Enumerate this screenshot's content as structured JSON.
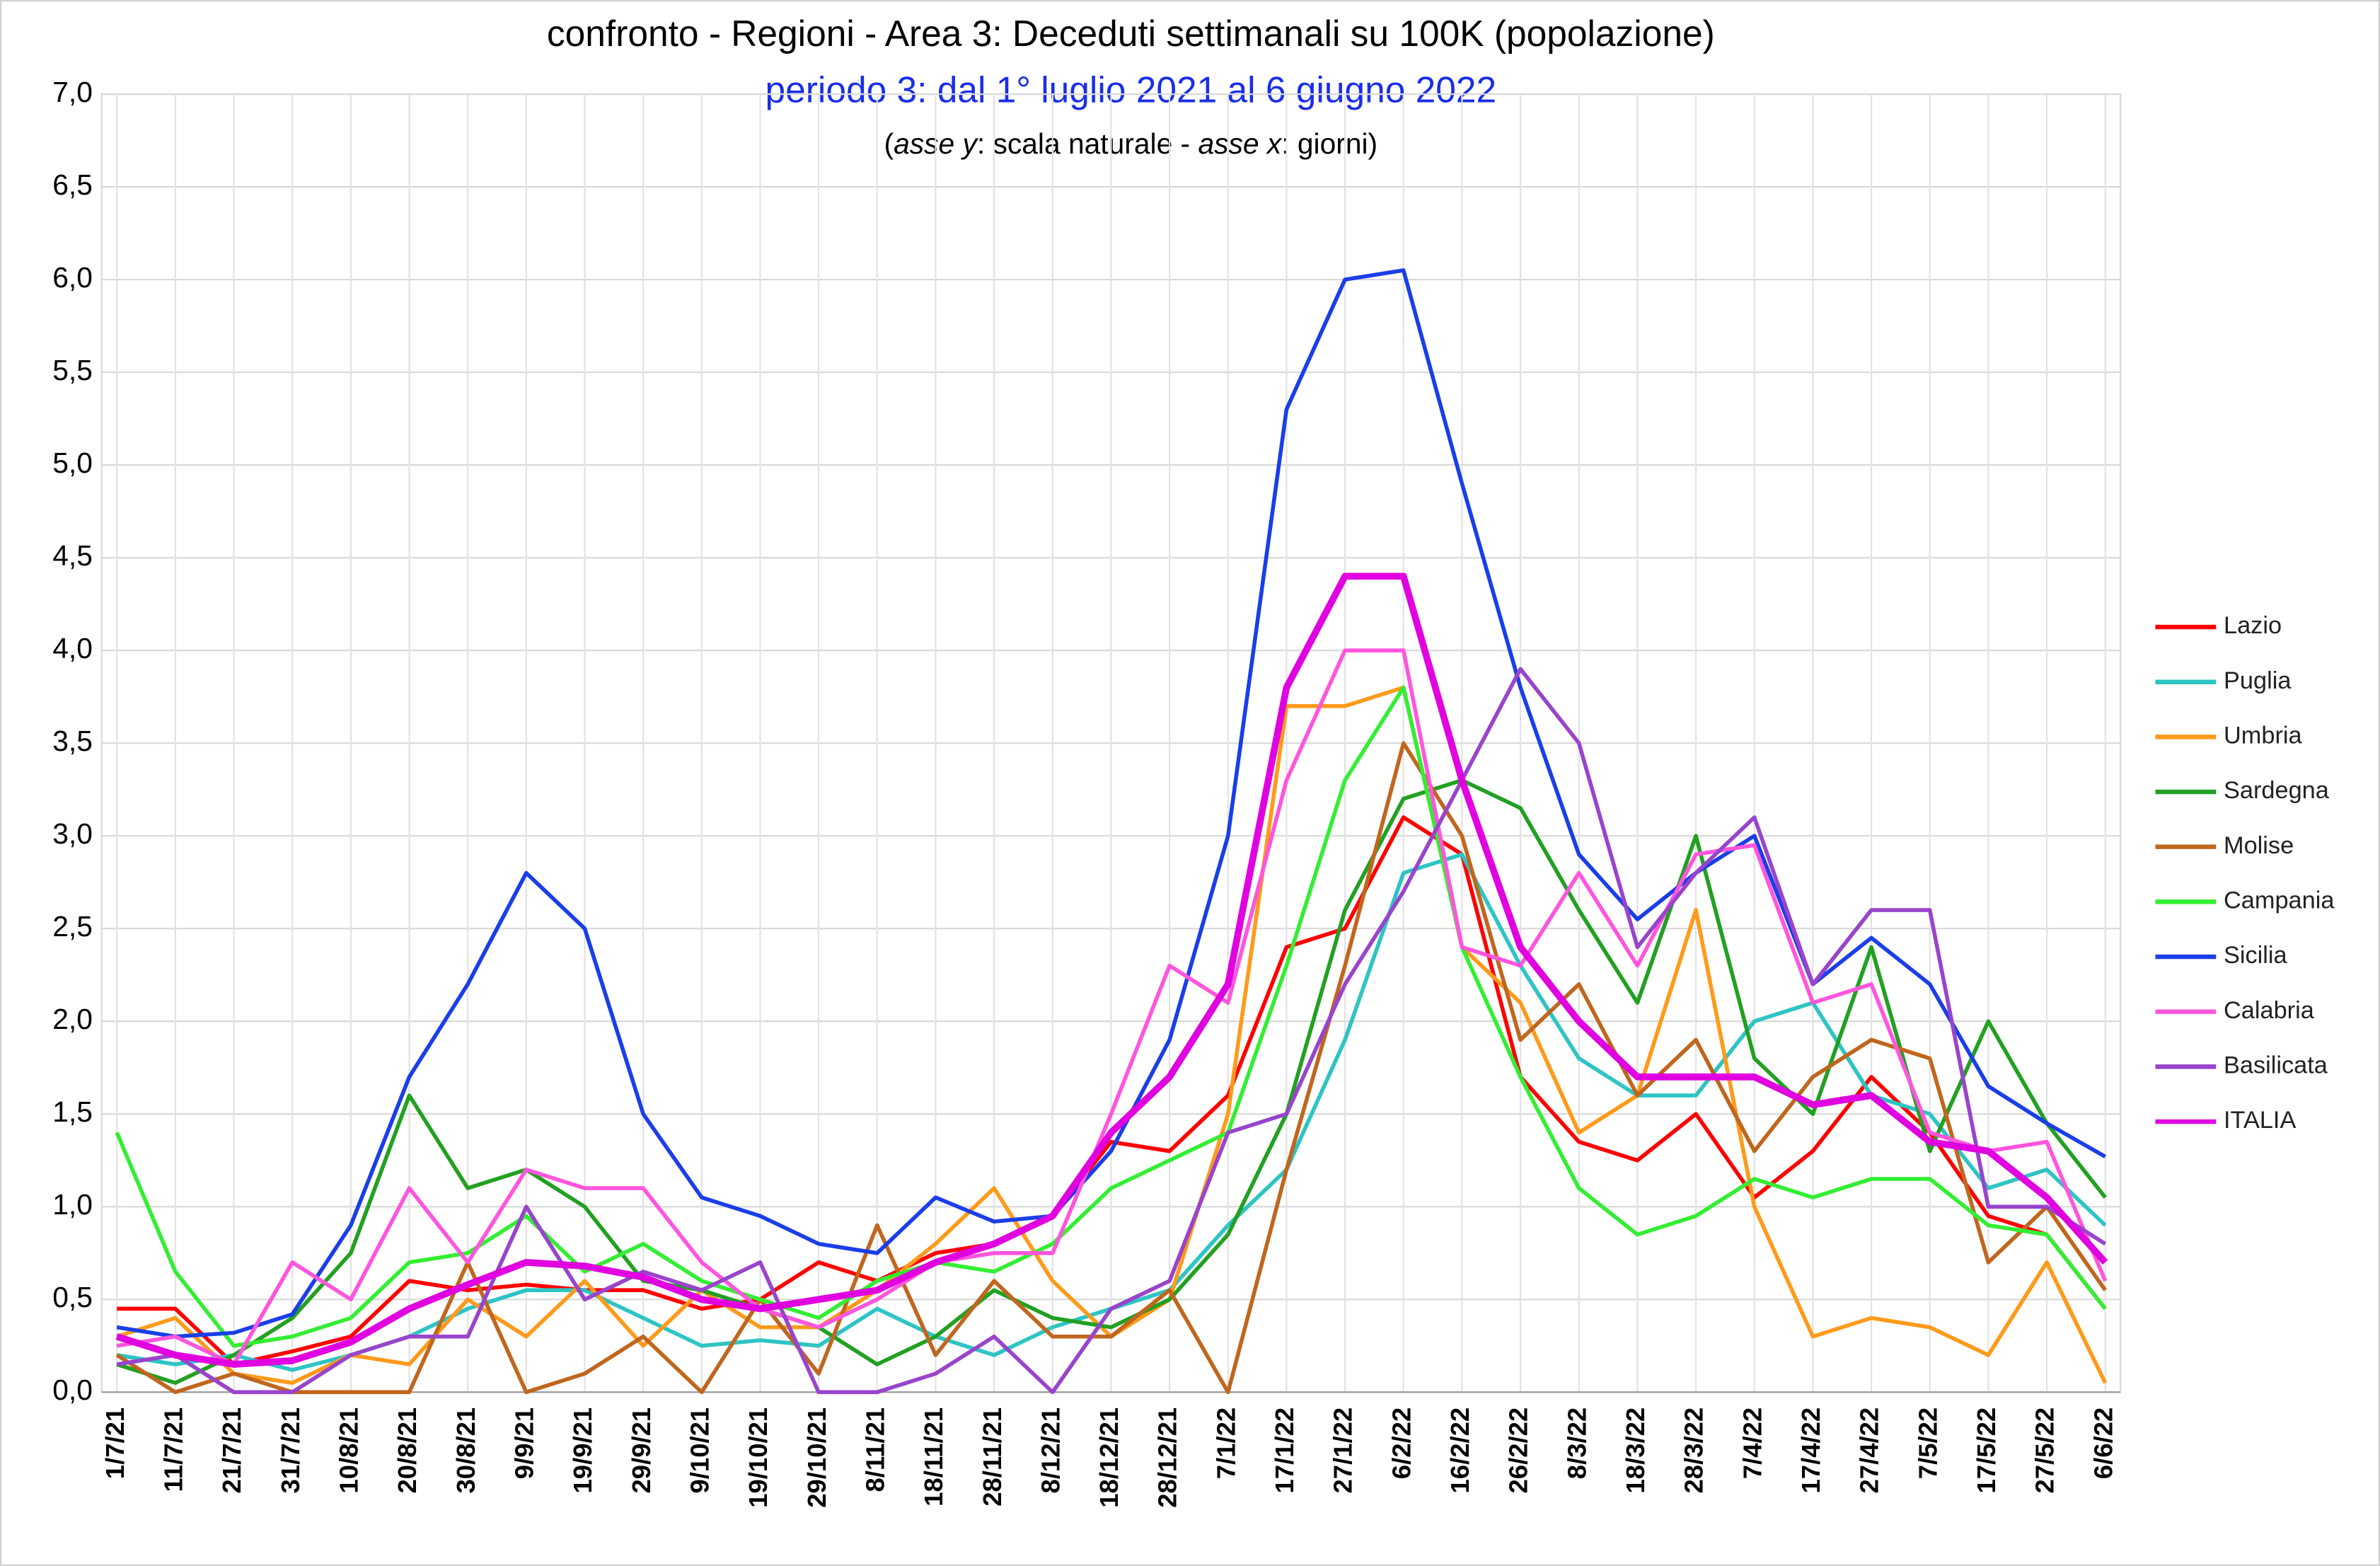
{
  "chart_data": {
    "type": "line",
    "title": "confronto - Regioni - Area 3: Deceduti settimanali su 100K (popolazione)",
    "subtitle": "periodo 3: dal 1° luglio 2021 al 6 giugno 2022",
    "note": [
      "(",
      "asse y",
      ": scala naturale - ",
      "asse x",
      ":  giorni)"
    ],
    "categories": [
      "1/7/21",
      "11/7/21",
      "21/7/21",
      "31/7/21",
      "10/8/21",
      "20/8/21",
      "30/8/21",
      "9/9/21",
      "19/9/21",
      "29/9/21",
      "9/10/21",
      "19/10/21",
      "29/10/21",
      "8/11/21",
      "18/11/21",
      "28/11/21",
      "8/12/21",
      "18/12/21",
      "28/12/21",
      "7/1/22",
      "17/1/22",
      "27/1/22",
      "6/2/22",
      "16/2/22",
      "26/2/22",
      "8/3/22",
      "18/3/22",
      "28/3/22",
      "7/4/22",
      "17/4/22",
      "27/4/22",
      "7/5/22",
      "17/5/22",
      "27/5/22",
      "6/6/22"
    ],
    "ylim": [
      0,
      7
    ],
    "yticks": [
      {
        "value": 0,
        "label": "0,0"
      },
      {
        "value": 0.5,
        "label": "0,5"
      },
      {
        "value": 1,
        "label": "1,0"
      },
      {
        "value": 1.5,
        "label": "1,5"
      },
      {
        "value": 2,
        "label": "2,0"
      },
      {
        "value": 2.5,
        "label": "2,5"
      },
      {
        "value": 3,
        "label": "3,0"
      },
      {
        "value": 3.5,
        "label": "3,5"
      },
      {
        "value": 4,
        "label": "4,0"
      },
      {
        "value": 4.5,
        "label": "4,5"
      },
      {
        "value": 5,
        "label": "5,0"
      },
      {
        "value": 5.5,
        "label": "5,5"
      },
      {
        "value": 6,
        "label": "6,0"
      },
      {
        "value": 6.5,
        "label": "6,5"
      },
      {
        "value": 7,
        "label": "7,0"
      }
    ],
    "grid": true,
    "legend": "right",
    "series": [
      {
        "name": "Lazio",
        "color": "#ff0000",
        "values": [
          0.45,
          0.45,
          0.15,
          0.22,
          0.3,
          0.6,
          0.55,
          0.58,
          0.55,
          0.55,
          0.45,
          0.5,
          0.7,
          0.6,
          0.75,
          0.8,
          0.95,
          1.35,
          1.3,
          1.6,
          2.4,
          2.5,
          3.1,
          2.9,
          1.7,
          1.35,
          1.25,
          1.5,
          1.05,
          1.3,
          1.7,
          1.4,
          0.95,
          0.85,
          0.45
        ]
      },
      {
        "name": "Puglia",
        "color": "#2ec4c4",
        "values": [
          0.2,
          0.15,
          0.2,
          0.12,
          0.2,
          0.3,
          0.45,
          0.55,
          0.55,
          0.4,
          0.25,
          0.28,
          0.25,
          0.45,
          0.3,
          0.2,
          0.35,
          0.45,
          0.55,
          0.9,
          1.2,
          1.9,
          2.8,
          2.9,
          2.3,
          1.8,
          1.6,
          1.6,
          2.0,
          2.1,
          1.6,
          1.5,
          1.1,
          1.2,
          0.9
        ]
      },
      {
        "name": "Umbria",
        "color": "#ff9a1a",
        "values": [
          0.3,
          0.4,
          0.1,
          0.05,
          0.2,
          0.15,
          0.5,
          0.3,
          0.6,
          0.25,
          0.55,
          0.35,
          0.35,
          0.55,
          0.8,
          1.1,
          0.6,
          0.3,
          0.5,
          1.5,
          3.7,
          3.7,
          3.8,
          2.4,
          2.1,
          1.4,
          1.6,
          2.6,
          1.0,
          0.3,
          0.4,
          0.35,
          0.2,
          0.7,
          0.05
        ]
      },
      {
        "name": "Sardegna",
        "color": "#22a022",
        "values": [
          0.15,
          0.05,
          0.2,
          0.4,
          0.75,
          1.6,
          1.1,
          1.2,
          1.0,
          0.6,
          0.55,
          0.45,
          0.35,
          0.15,
          0.3,
          0.55,
          0.4,
          0.35,
          0.5,
          0.85,
          1.5,
          2.6,
          3.2,
          3.3,
          3.15,
          2.6,
          2.1,
          3.0,
          1.8,
          1.5,
          2.4,
          1.3,
          2.0,
          1.45,
          1.05
        ]
      },
      {
        "name": "Molise",
        "color": "#c0661e",
        "values": [
          0.2,
          0.0,
          0.1,
          0.0,
          0.0,
          0.0,
          0.7,
          0.0,
          0.1,
          0.3,
          0.0,
          0.5,
          0.1,
          0.9,
          0.2,
          0.6,
          0.3,
          0.3,
          0.55,
          0.0,
          1.2,
          2.3,
          3.5,
          3.0,
          1.9,
          2.2,
          1.6,
          1.9,
          1.3,
          1.7,
          1.9,
          1.8,
          0.7,
          1.0,
          0.55
        ]
      },
      {
        "name": "Campania",
        "color": "#33ee33",
        "values": [
          1.4,
          0.65,
          0.25,
          0.3,
          0.4,
          0.7,
          0.75,
          0.95,
          0.65,
          0.8,
          0.6,
          0.5,
          0.4,
          0.6,
          0.7,
          0.65,
          0.8,
          1.1,
          1.25,
          1.4,
          2.3,
          3.3,
          3.8,
          2.4,
          1.7,
          1.1,
          0.85,
          0.95,
          1.15,
          1.05,
          1.15,
          1.15,
          0.9,
          0.85,
          0.45
        ]
      },
      {
        "name": "Sicilia",
        "color": "#1a3ee8",
        "values": [
          0.35,
          0.3,
          0.32,
          0.42,
          0.9,
          1.7,
          2.2,
          2.8,
          2.5,
          1.5,
          1.05,
          0.95,
          0.8,
          0.75,
          1.05,
          0.92,
          0.95,
          1.3,
          1.9,
          3.0,
          5.3,
          6.0,
          6.05,
          4.9,
          3.8,
          2.9,
          2.55,
          2.8,
          3.0,
          2.2,
          2.45,
          2.2,
          1.65,
          1.45,
          1.27
        ]
      },
      {
        "name": "Calabria",
        "color": "#ff55dd",
        "values": [
          0.25,
          0.3,
          0.15,
          0.7,
          0.5,
          1.1,
          0.7,
          1.2,
          1.1,
          1.1,
          0.7,
          0.45,
          0.35,
          0.5,
          0.7,
          0.75,
          0.75,
          1.5,
          2.3,
          2.1,
          3.3,
          4.0,
          4.0,
          2.4,
          2.3,
          2.8,
          2.3,
          2.9,
          2.95,
          2.1,
          2.2,
          1.4,
          1.3,
          1.35,
          0.6
        ]
      },
      {
        "name": "Basilicata",
        "color": "#9944cc",
        "values": [
          0.15,
          0.2,
          0.0,
          0.0,
          0.2,
          0.3,
          0.3,
          1.0,
          0.5,
          0.65,
          0.55,
          0.7,
          0.0,
          0.0,
          0.1,
          0.3,
          0.0,
          0.45,
          0.6,
          1.4,
          1.5,
          2.2,
          2.7,
          3.3,
          3.9,
          3.5,
          2.4,
          2.8,
          3.1,
          2.2,
          2.6,
          2.6,
          1.0,
          1.0,
          0.8
        ]
      },
      {
        "name": "ITALIA",
        "color": "#e000e0",
        "values": [
          0.3,
          0.2,
          0.15,
          0.17,
          0.27,
          0.45,
          0.58,
          0.7,
          0.68,
          0.62,
          0.5,
          0.45,
          0.5,
          0.55,
          0.7,
          0.8,
          0.95,
          1.4,
          1.7,
          2.2,
          3.8,
          4.4,
          4.4,
          3.3,
          2.4,
          2.0,
          1.7,
          1.7,
          1.7,
          1.55,
          1.6,
          1.35,
          1.3,
          1.05,
          0.7
        ]
      }
    ]
  }
}
